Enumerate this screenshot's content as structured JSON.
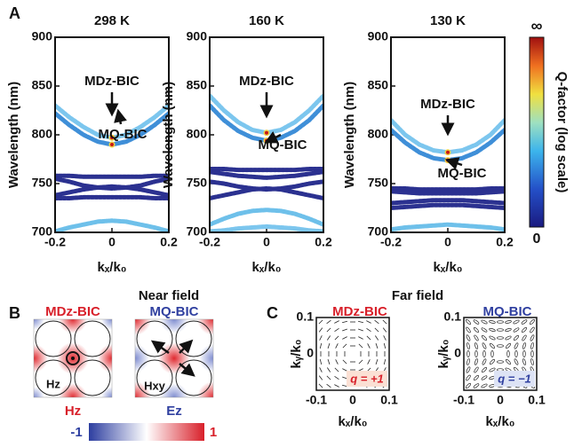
{
  "panel_labels": [
    "A",
    "B",
    "C"
  ],
  "chart_data": [
    {
      "type": "line",
      "title": "298 K",
      "xlabel": "kₓ/k₀",
      "ylabel": "Wavelength (nm)",
      "xlim": [
        -0.2,
        0.2
      ],
      "xticks": [
        -0.2,
        0,
        0.2
      ],
      "ylim": [
        700,
        900
      ],
      "yticks": [
        700,
        750,
        800,
        850,
        900
      ],
      "x": [
        -0.2,
        -0.15,
        -0.1,
        -0.05,
        0,
        0.05,
        0.1,
        0.15,
        0.2
      ],
      "annotations": [
        "MDz-BIC",
        "MQ-BIC"
      ],
      "series": [
        {
          "color": "#7cc6ee",
          "values": [
            830,
            818,
            808,
            800,
            797,
            800,
            808,
            818,
            830
          ]
        },
        {
          "color": "#3f8fd8",
          "values": [
            822,
            810,
            800,
            793,
            790,
            793,
            800,
            810,
            822
          ]
        },
        {
          "color": "#2b3190",
          "values": [
            758,
            758,
            757,
            757,
            757,
            757,
            757,
            758,
            758
          ]
        },
        {
          "color": "#2b3190",
          "values": [
            755,
            752,
            748,
            746,
            745,
            746,
            748,
            752,
            755
          ]
        },
        {
          "color": "#2b3190",
          "values": [
            738,
            741,
            744,
            746,
            747,
            746,
            744,
            741,
            738
          ]
        },
        {
          "color": "#2b3190",
          "values": [
            735,
            735,
            736,
            736,
            736,
            736,
            736,
            735,
            735
          ]
        },
        {
          "color": "#6ec0ea",
          "values": [
            701,
            705,
            708,
            711,
            712,
            711,
            708,
            705,
            701
          ]
        }
      ]
    },
    {
      "type": "line",
      "title": "160 K",
      "xlabel": "kₓ/k₀",
      "ylabel": "Wavelength (nm)",
      "xlim": [
        -0.2,
        0.2
      ],
      "xticks": [
        -0.2,
        0,
        0.2
      ],
      "ylim": [
        700,
        900
      ],
      "yticks": [
        700,
        750,
        800,
        850,
        900
      ],
      "x": [
        -0.2,
        -0.15,
        -0.1,
        -0.05,
        0,
        0.05,
        0.1,
        0.15,
        0.2
      ],
      "annotations": [
        "MDz-BIC",
        "MQ-BIC"
      ],
      "series": [
        {
          "color": "#7cc6ee",
          "values": [
            840,
            825,
            813,
            805,
            802,
            805,
            813,
            825,
            840
          ]
        },
        {
          "color": "#3f8fd8",
          "values": [
            830,
            815,
            804,
            797,
            794,
            797,
            804,
            815,
            830
          ]
        },
        {
          "color": "#2b3190",
          "values": [
            765,
            765,
            764,
            764,
            764,
            764,
            764,
            765,
            765
          ]
        },
        {
          "color": "#2b3190",
          "values": [
            762,
            760,
            758,
            757,
            756,
            757,
            758,
            760,
            762
          ]
        },
        {
          "color": "#2b3190",
          "values": [
            752,
            750,
            747,
            745,
            744,
            745,
            747,
            750,
            752
          ]
        },
        {
          "color": "#2b3190",
          "values": [
            735,
            738,
            741,
            744,
            745,
            744,
            741,
            738,
            735
          ]
        },
        {
          "color": "#6ec0ea",
          "values": [
            708,
            714,
            719,
            722,
            723,
            722,
            719,
            714,
            708
          ]
        },
        {
          "color": "#7cc6ee",
          "values": [
            701,
            702,
            704,
            705,
            706,
            705,
            704,
            702,
            701
          ]
        }
      ]
    },
    {
      "type": "line",
      "title": "130 K",
      "xlabel": "kₓ/k₀",
      "ylabel": "Wavelength (nm)",
      "xlim": [
        -0.2,
        0.2
      ],
      "xticks": [
        -0.2,
        0,
        0.2
      ],
      "ylim": [
        700,
        900
      ],
      "yticks": [
        700,
        750,
        800,
        850,
        900
      ],
      "x": [
        -0.2,
        -0.15,
        -0.1,
        -0.05,
        0,
        0.05,
        0.1,
        0.15,
        0.2
      ],
      "annotations": [
        "MDz-BIC",
        "MQ-BIC"
      ],
      "series": [
        {
          "color": "#7cc6ee",
          "values": [
            815,
            800,
            790,
            784,
            782,
            784,
            790,
            800,
            815
          ]
        },
        {
          "color": "#3f8fd8",
          "values": [
            805,
            792,
            782,
            776,
            774,
            776,
            782,
            792,
            805
          ]
        },
        {
          "color": "#2b3190",
          "values": [
            745,
            745,
            744,
            744,
            744,
            744,
            744,
            745,
            745
          ]
        },
        {
          "color": "#2b3190",
          "values": [
            742,
            741,
            740,
            740,
            740,
            740,
            740,
            741,
            742
          ]
        },
        {
          "color": "#2b3190",
          "values": [
            730,
            731,
            732,
            733,
            733,
            733,
            732,
            731,
            730
          ]
        },
        {
          "color": "#2b3190",
          "values": [
            725,
            726,
            727,
            728,
            728,
            728,
            727,
            726,
            725
          ]
        },
        {
          "color": "#6ec0ea",
          "values": [
            703,
            705,
            706,
            707,
            708,
            707,
            706,
            705,
            703
          ]
        }
      ]
    }
  ],
  "colorbar": {
    "title": "Q-factor (log scale)",
    "top": "∞",
    "bottom": "0"
  },
  "near_field": {
    "title": "Near field",
    "maps": [
      {
        "title": "MDz-BIC",
        "inner": "Hz",
        "field": "Hz"
      },
      {
        "title": "MQ-BIC",
        "inner": "Hxy",
        "field": "Ez"
      }
    ],
    "scale": [
      "-1",
      "1"
    ]
  },
  "far_field": {
    "title": "Far field",
    "plots": [
      {
        "title": "MDz-BIC",
        "charge": "q = +1"
      },
      {
        "title": "MQ-BIC",
        "charge": "q = −1"
      }
    ],
    "xticks": [
      "-0.1",
      "0",
      "0.1"
    ],
    "yticks": [
      "0.1",
      "0"
    ],
    "xlabel": "kₓ/k₀",
    "ylabel": "kᵧ/k₀"
  }
}
